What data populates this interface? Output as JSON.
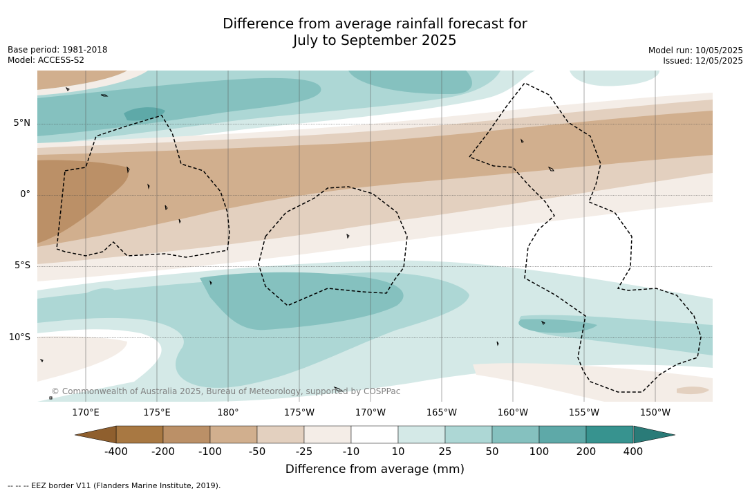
{
  "title": {
    "line1": "Difference from average rainfall forecast for",
    "line2": "July to September 2025"
  },
  "meta_left": {
    "base_period": "Base period: 1981-2018",
    "model": "Model: ACCESS-S2"
  },
  "meta_right": {
    "model_run": "Model run: 10/05/2025",
    "issued": "Issued: 12/05/2025"
  },
  "map": {
    "lat_labels": [
      "5°N",
      "0°",
      "5°S",
      "10°S"
    ],
    "lon_labels": [
      "170°E",
      "175°E",
      "180°",
      "175°W",
      "170°W",
      "165°W",
      "160°W",
      "155°W",
      "150°W"
    ],
    "copyright": "© Commonwealth of Australia 2025, Bureau of Meteorology, supported by COSPPac",
    "extent": {
      "lon_west": 166.7,
      "lon_east": 214,
      "lat_north": 8.5,
      "lat_south": -14.5
    },
    "grid_lines": "on"
  },
  "colorbar": {
    "ticks": [
      "-400",
      "-200",
      "-100",
      "-50",
      "-25",
      "-10",
      "10",
      "25",
      "50",
      "100",
      "200",
      "400"
    ],
    "colors": [
      "#a87842",
      "#bb9067",
      "#d1af8e",
      "#e3d0bf",
      "#f4ede7",
      "#ffffff",
      "#d4e9e7",
      "#add7d5",
      "#85c1bf",
      "#5ea9a8",
      "#37938f"
    ],
    "under_color": "#8f5f2e",
    "over_color": "#2a7b78",
    "title": "Difference from average (mm)"
  },
  "footnote": "--  --  -- EEZ border V11 (Flanders Marine Institute, 2019)."
}
